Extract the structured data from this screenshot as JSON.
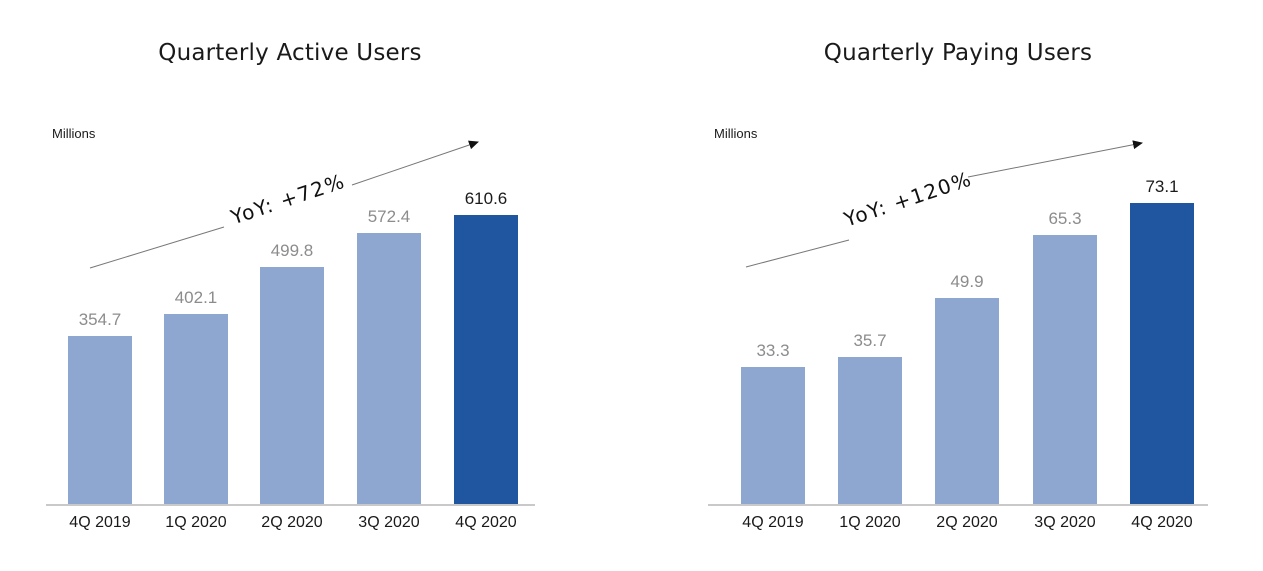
{
  "figure": {
    "background": "#ffffff"
  },
  "colors": {
    "bar_light": "#8EA7D0",
    "bar_highlight": "#1F569F",
    "value_label_gray": "#8C8C8C",
    "value_label_dark": "#1A1A1A",
    "category_label": "#1A1A1A",
    "axis_line": "#C9C9C9",
    "arrow_line": "#777777",
    "arrow_head": "#111111",
    "annotation_text": "#111111",
    "title_text": "#1A1A1A"
  },
  "chart_data": [
    {
      "type": "bar",
      "title": "Quarterly Active Users",
      "unit_label": "Millions",
      "annotation": "YoY: +72%",
      "categories": [
        "4Q 2019",
        "1Q 2020",
        "2Q 2020",
        "3Q 2020",
        "4Q 2020"
      ],
      "values": [
        354.7,
        402.1,
        499.8,
        572.4,
        610.6
      ],
      "value_labels": [
        "354.7",
        "402.1",
        "499.8",
        "572.4",
        "610.6"
      ],
      "highlight_index": 4,
      "ylim": [
        0,
        640
      ],
      "grid": false,
      "legend": false,
      "y_axis_ticks": "none"
    },
    {
      "type": "bar",
      "title": "Quarterly Paying Users",
      "unit_label": "Millions",
      "annotation": "YoY: +120%",
      "categories": [
        "4Q 2019",
        "1Q 2020",
        "2Q 2020",
        "3Q 2020",
        "4Q 2020"
      ],
      "values": [
        33.3,
        35.7,
        49.9,
        65.3,
        73.1
      ],
      "value_labels": [
        "33.3",
        "35.7",
        "49.9",
        "65.3",
        "73.1"
      ],
      "highlight_index": 4,
      "ylim": [
        0,
        76
      ],
      "grid": false,
      "legend": false,
      "y_axis_ticks": "none"
    }
  ]
}
